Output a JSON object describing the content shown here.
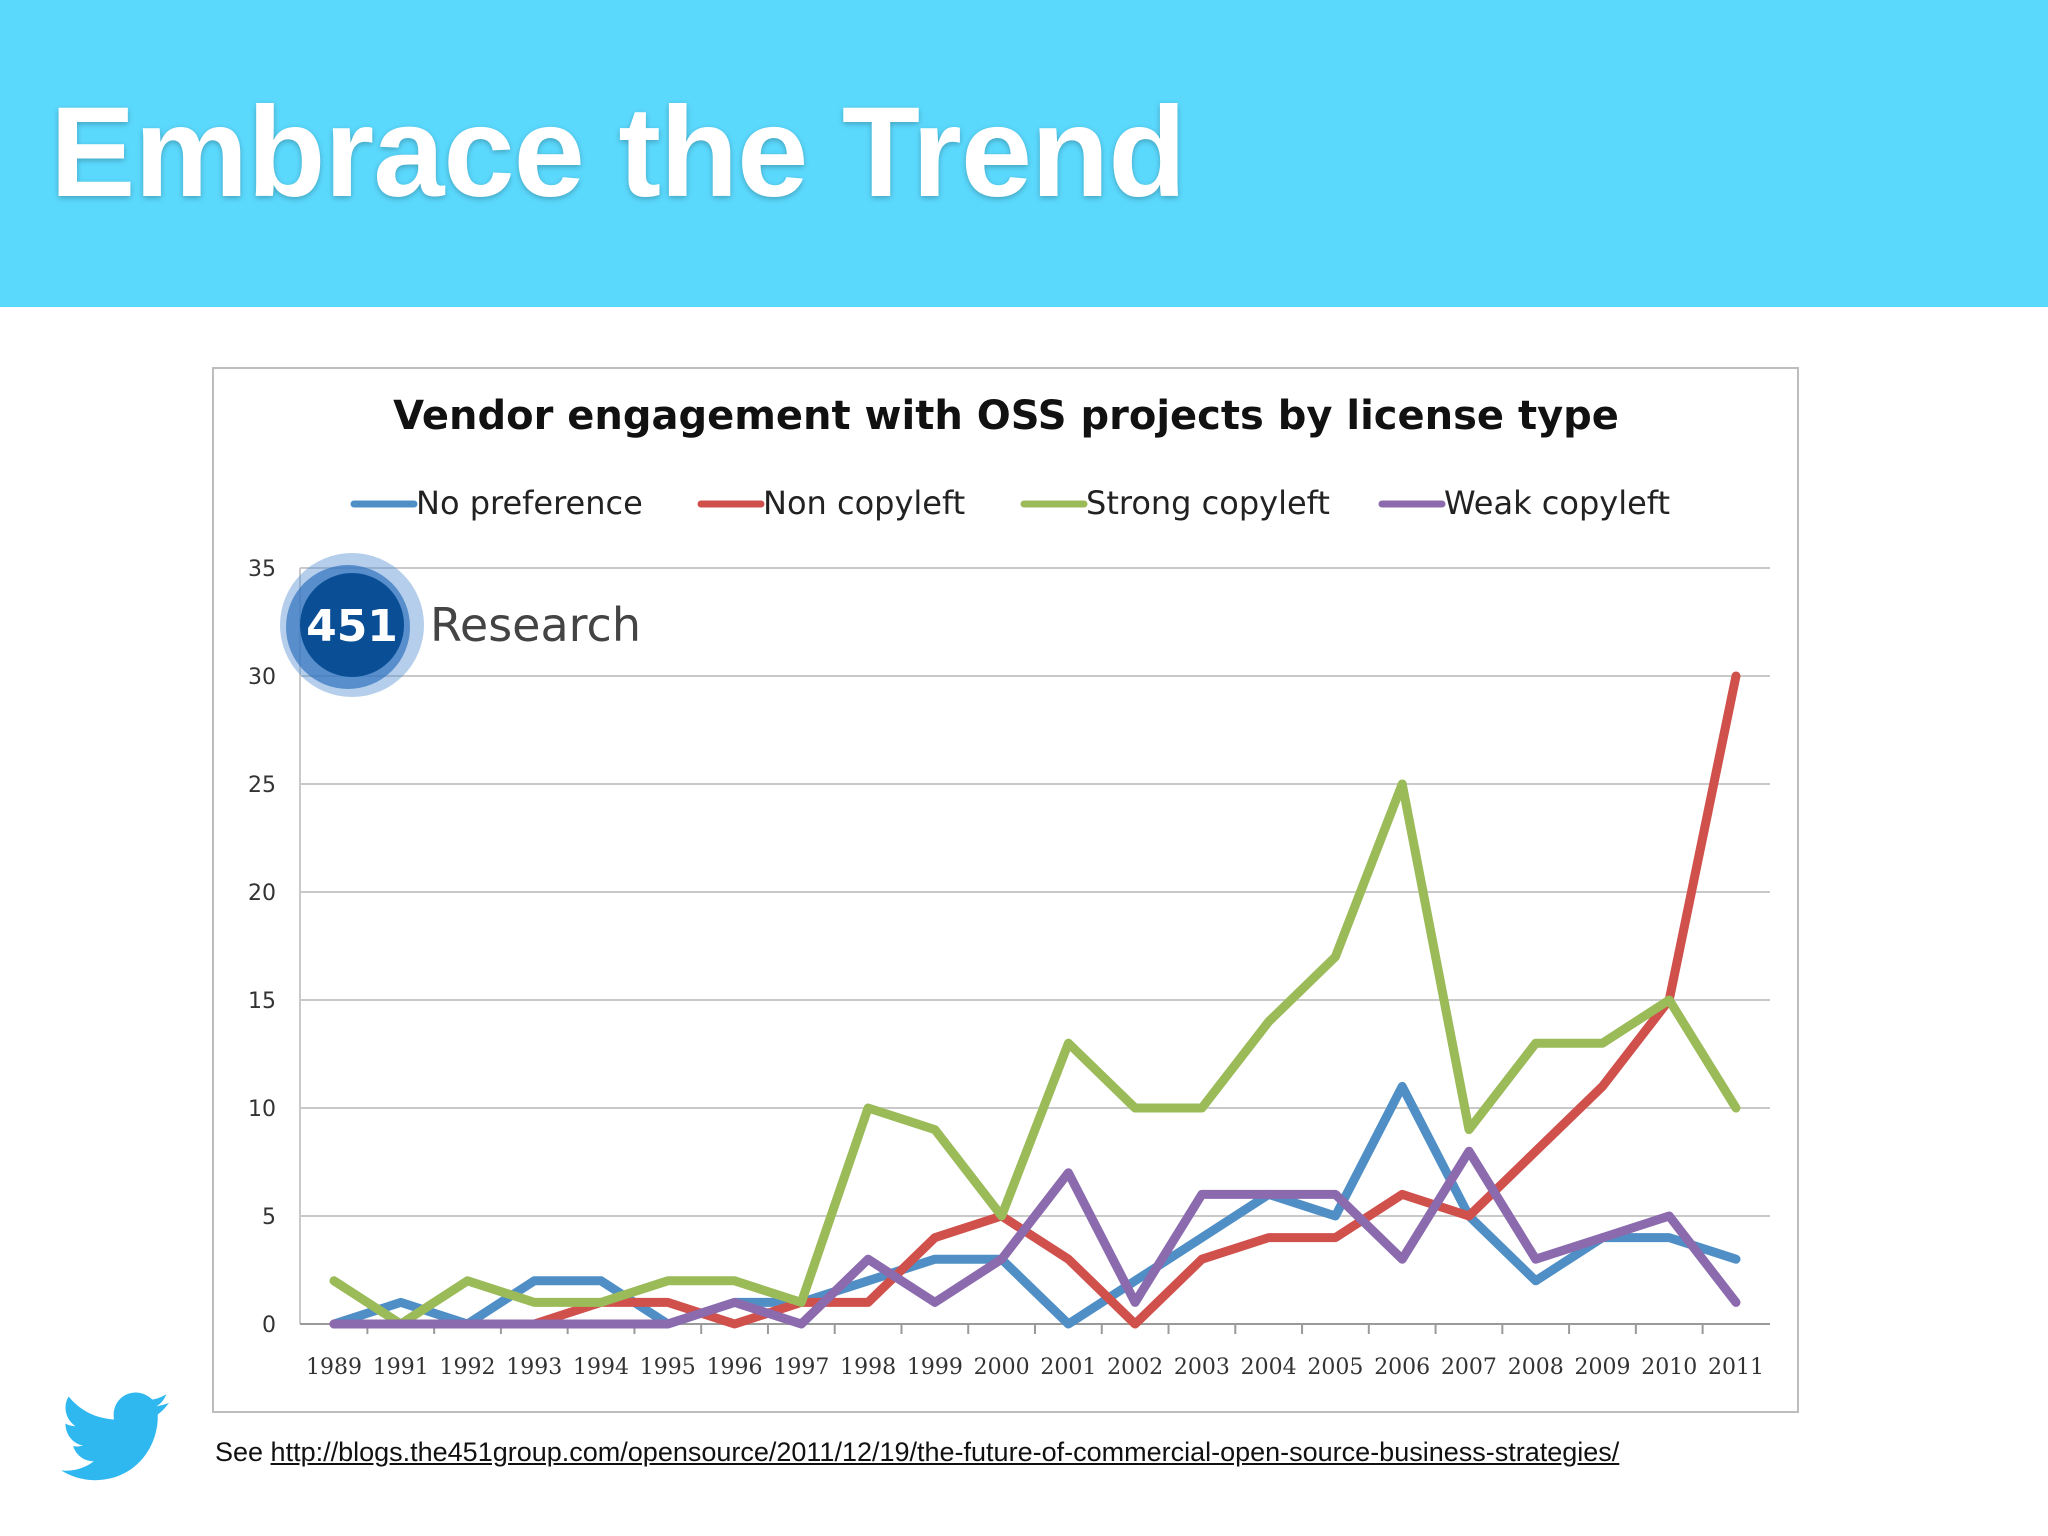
{
  "slide": {
    "title": "Embrace the Trend",
    "source_prefix": "See ",
    "source_link": "http://blogs.the451group.com/opensource/2011/12/19/the-future-of-commercial-open-source-business-strategies/"
  },
  "logo": {
    "number": "451",
    "word": "Research"
  },
  "icons": {
    "bird": "twitter-bird-icon"
  },
  "colors": {
    "header": "#5bd9fd",
    "twitter": "#2fb7f0",
    "logo": "#0a4f96"
  },
  "chart_data": {
    "type": "line",
    "title": "Vendor engagement with OSS projects by license type",
    "xlabel": "",
    "ylabel": "",
    "ylim": [
      0,
      35
    ],
    "yticks": [
      0,
      5,
      10,
      15,
      20,
      25,
      30,
      35
    ],
    "grid": true,
    "legend_position": "top",
    "categories": [
      "1989",
      "1991",
      "1992",
      "1993",
      "1994",
      "1995",
      "1996",
      "1997",
      "1998",
      "1999",
      "2000",
      "2001",
      "2002",
      "2003",
      "2004",
      "2005",
      "2006",
      "2007",
      "2008",
      "2009",
      "2010",
      "2011"
    ],
    "series": [
      {
        "name": "No preference",
        "color": "#4f8fc6",
        "values": [
          0,
          1,
          0,
          2,
          2,
          0,
          1,
          1,
          2,
          3,
          3,
          0,
          2,
          4,
          6,
          5,
          11,
          5,
          2,
          4,
          4,
          3
        ]
      },
      {
        "name": "Non copyleft",
        "color": "#d0504c",
        "values": [
          0,
          0,
          0,
          0,
          1,
          1,
          0,
          1,
          1,
          4,
          5,
          3,
          0,
          3,
          4,
          4,
          6,
          5,
          8,
          11,
          15,
          30
        ]
      },
      {
        "name": "Strong copyleft",
        "color": "#9bbb59",
        "values": [
          2,
          0,
          2,
          1,
          1,
          2,
          2,
          1,
          10,
          9,
          5,
          13,
          10,
          10,
          14,
          17,
          25,
          9,
          13,
          13,
          15,
          10
        ]
      },
      {
        "name": "Weak copyleft",
        "color": "#8b6aad",
        "values": [
          0,
          0,
          0,
          0,
          0,
          0,
          1,
          0,
          3,
          1,
          3,
          7,
          1,
          6,
          6,
          6,
          3,
          8,
          3,
          4,
          5,
          1
        ]
      }
    ]
  }
}
